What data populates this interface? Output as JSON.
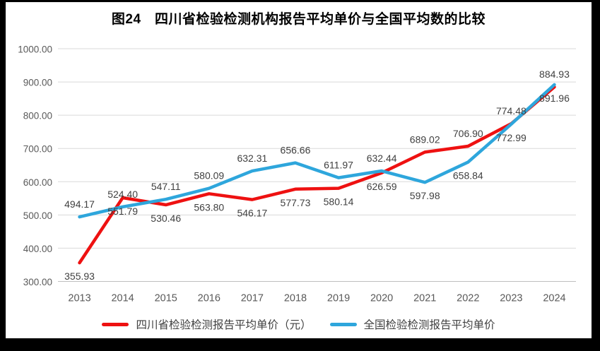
{
  "chart_data": {
    "type": "line",
    "title": "图24　四川省检验检测机构报告平均单价与全国平均数的比较",
    "categories": [
      "2013",
      "2014",
      "2015",
      "2016",
      "2017",
      "2018",
      "2019",
      "2020",
      "2021",
      "2022",
      "2023",
      "2024"
    ],
    "series": [
      {
        "name": "四川省检验检测报告平均单价（元）",
        "color": "#EE1111",
        "values": [
          355.93,
          551.79,
          530.46,
          563.8,
          546.17,
          577.73,
          580.14,
          626.59,
          689.02,
          706.9,
          774.48,
          884.93
        ],
        "label_sides": [
          "below",
          "below",
          "below",
          "below",
          "below",
          "below",
          "below",
          "below",
          "above",
          "above",
          "above",
          "above"
        ]
      },
      {
        "name": "全国检验检测报告平均单价",
        "color": "#2EA6DC",
        "values": [
          494.17,
          524.4,
          547.11,
          580.09,
          632.31,
          656.66,
          611.97,
          632.44,
          597.98,
          658.84,
          772.99,
          891.96
        ],
        "label_sides": [
          "above",
          "above",
          "above",
          "above",
          "above",
          "above",
          "above",
          "above",
          "below",
          "below",
          "below",
          "below"
        ]
      }
    ],
    "ylim": [
      300,
      1000
    ],
    "ytick_step": 100,
    "ytick_labels": [
      "300.00",
      "400.00",
      "500.00",
      "600.00",
      "700.00",
      "800.00",
      "900.00",
      "1000.00"
    ],
    "grid": "horizontal",
    "legend_position": "bottom",
    "colors": {
      "gridline": "#D9D9D9",
      "axis_line": "#BFBFBF",
      "tick_label": "#595959",
      "data_label": "#404040",
      "title": "#000000",
      "background": "#FFFFFF",
      "frame": "#000000"
    }
  }
}
